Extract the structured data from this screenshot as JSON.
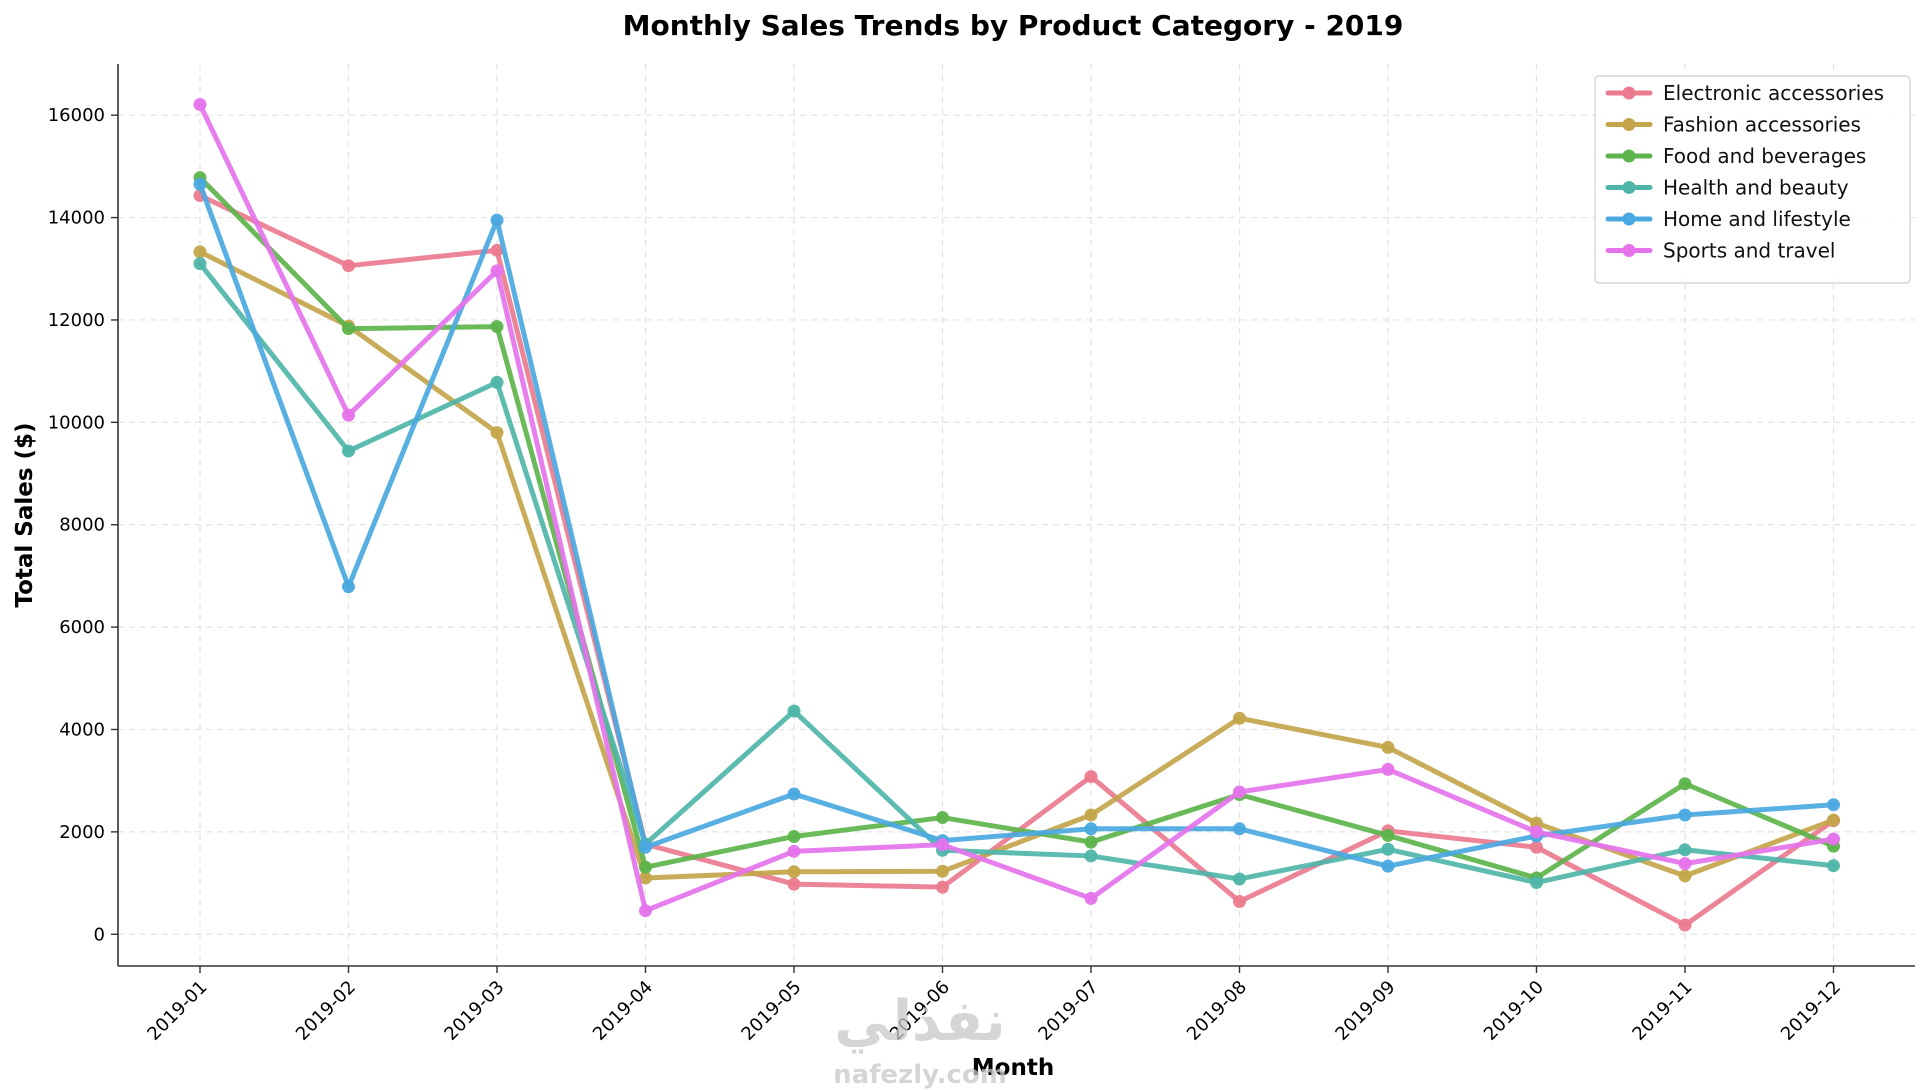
{
  "chart_data": {
    "type": "line",
    "title": "Monthly Sales Trends by Product Category - 2019",
    "xlabel": "Month",
    "ylabel": "Total Sales ($)",
    "categories": [
      "2019-01",
      "2019-02",
      "2019-03",
      "2019-04",
      "2019-05",
      "2019-06",
      "2019-07",
      "2019-08",
      "2019-09",
      "2019-10",
      "2019-11",
      "2019-12"
    ],
    "ylim": [
      -620,
      17000
    ],
    "yticks": [
      0,
      2000,
      4000,
      6000,
      8000,
      10000,
      12000,
      14000,
      16000
    ],
    "grid": true,
    "legend_position": "top-right",
    "series": [
      {
        "name": "Electronic accessories",
        "color": "#ec7b8f",
        "values": [
          14430,
          13060,
          13360,
          1760,
          980,
          920,
          3080,
          640,
          2020,
          1700,
          180,
          2220
        ]
      },
      {
        "name": "Fashion accessories",
        "color": "#c4a54b",
        "values": [
          13330,
          11880,
          9800,
          1100,
          1220,
          1230,
          2330,
          4220,
          3650,
          2170,
          1140,
          2230
        ]
      },
      {
        "name": "Food and beverages",
        "color": "#5db44c",
        "values": [
          14780,
          11830,
          11870,
          1310,
          1910,
          2280,
          1800,
          2730,
          1930,
          1100,
          2940,
          1720
        ]
      },
      {
        "name": "Health and beauty",
        "color": "#4fb5a9",
        "values": [
          13100,
          9440,
          10780,
          1760,
          4360,
          1640,
          1530,
          1080,
          1660,
          1010,
          1650,
          1340
        ]
      },
      {
        "name": "Home and lifestyle",
        "color": "#4aa8e0",
        "values": [
          14650,
          6790,
          13950,
          1700,
          2740,
          1830,
          2060,
          2060,
          1330,
          1920,
          2330,
          2530
        ]
      },
      {
        "name": "Sports and travel",
        "color": "#e573ec",
        "values": [
          16210,
          10140,
          12960,
          460,
          1620,
          1750,
          700,
          2780,
          3220,
          2000,
          1380,
          1860
        ]
      }
    ]
  },
  "watermark": {
    "arabic": "نفذلي",
    "latin": "nafezly.com"
  }
}
